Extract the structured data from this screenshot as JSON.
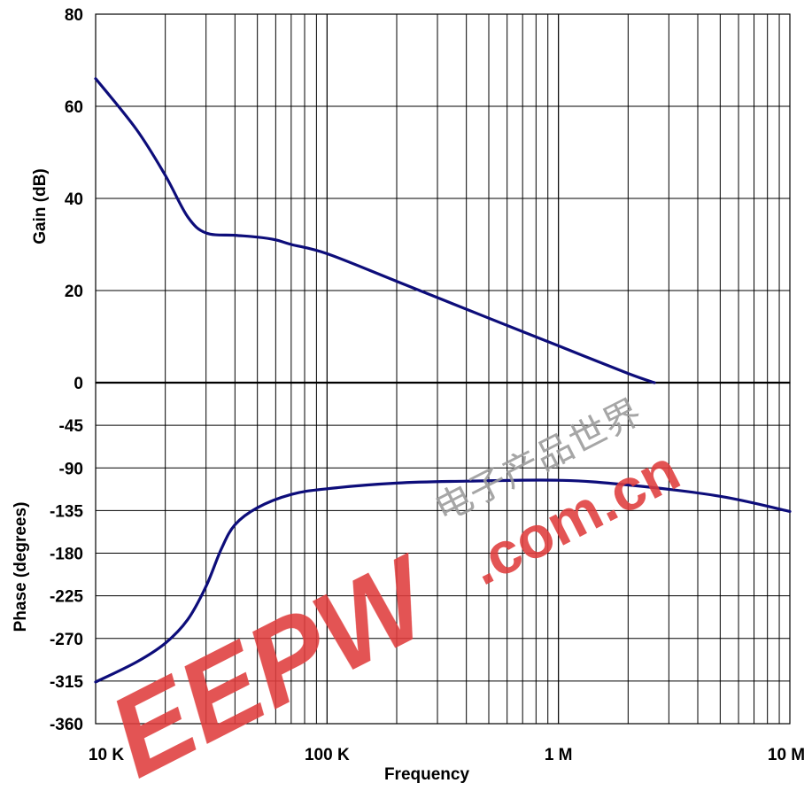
{
  "chart_data": [
    {
      "type": "line",
      "panel": "gain",
      "ylabel": "Gain (dB)",
      "xscale": "log",
      "xlim": [
        10000,
        10000000
      ],
      "ylim": [
        0,
        80
      ],
      "yticks": [
        "80",
        "60",
        "40",
        "20",
        "0"
      ],
      "grid": true,
      "color": "#0d0d7a",
      "series": [
        {
          "x": [
            10000,
            15000,
            20000,
            25000,
            30000,
            40000,
            50000,
            60000,
            70000,
            100000,
            200000,
            500000,
            1000000,
            2000000,
            2600000
          ],
          "y": [
            66,
            55,
            45,
            36,
            32.5,
            32,
            31.6,
            31,
            30,
            28,
            22,
            14,
            8,
            2,
            0
          ]
        }
      ]
    },
    {
      "type": "line",
      "panel": "phase",
      "ylabel": "Phase (degrees)",
      "xlabel": "Frequency",
      "xscale": "log",
      "xlim": [
        10000,
        10000000
      ],
      "ylim": [
        -360,
        0
      ],
      "yticks": [
        "0",
        "-45",
        "-90",
        "-135",
        "-180",
        "-225",
        "-270",
        "-315",
        "-360"
      ],
      "xticks": [
        "10 K",
        "100 K",
        "1 M",
        "10 M"
      ],
      "grid": true,
      "color": "#0d0d7a",
      "series": [
        {
          "x": [
            10000,
            15000,
            20000,
            25000,
            30000,
            35000,
            40000,
            50000,
            70000,
            100000,
            200000,
            400000,
            1000000,
            2000000,
            5000000,
            10000000
          ],
          "y": [
            -316,
            -295,
            -275,
            -250,
            -215,
            -175,
            -150,
            -132,
            -118,
            -112,
            -106,
            -104,
            -103,
            -108,
            -120,
            -136
          ]
        }
      ]
    }
  ],
  "watermark": {
    "logo": "EEPW",
    "domain": ".com.cn",
    "chinese": "电子产品世界",
    "color": "#e03d3d"
  }
}
